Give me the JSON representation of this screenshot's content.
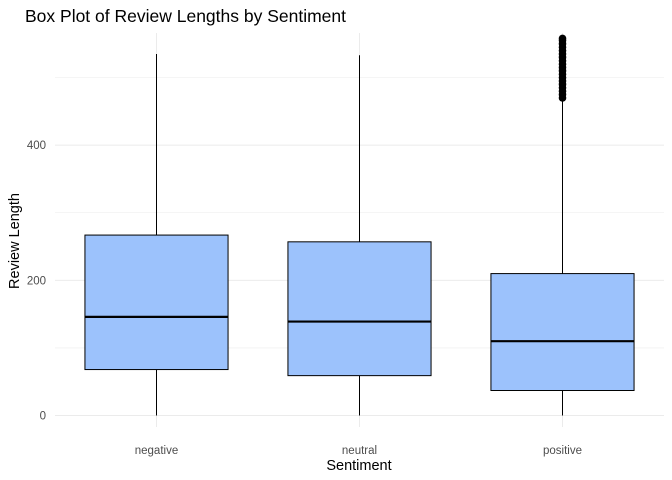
{
  "chart_data": {
    "type": "boxplot",
    "title": "Box Plot of Review Lengths by Sentiment",
    "xlabel": "Sentiment",
    "ylabel": "Review Length",
    "categories": [
      "negative",
      "neutral",
      "positive"
    ],
    "boxes": [
      {
        "category": "negative",
        "whisker_low": 0,
        "q1": 68,
        "median": 146,
        "q3": 267,
        "whisker_high": 535,
        "outliers": []
      },
      {
        "category": "neutral",
        "whisker_low": 0,
        "q1": 59,
        "median": 139,
        "q3": 257,
        "whisker_high": 533,
        "outliers": []
      },
      {
        "category": "positive",
        "whisker_low": 0,
        "q1": 37,
        "median": 110,
        "q3": 210,
        "whisker_high": 468,
        "outliers": [
          470,
          475,
          480,
          485,
          490,
          495,
          500,
          505,
          510,
          515,
          520,
          525,
          530,
          535,
          540,
          545,
          550,
          555,
          558
        ]
      }
    ],
    "y_ticks": [
      0,
      200,
      400
    ],
    "y_tick_labels": [
      "0",
      "200",
      "400"
    ],
    "ylim": [
      -17,
      566
    ],
    "grid": true,
    "legend": "none",
    "colors": {
      "box_fill": "#9CC2FC",
      "box_stroke": "#000000",
      "grid": "#ebebeb"
    }
  }
}
